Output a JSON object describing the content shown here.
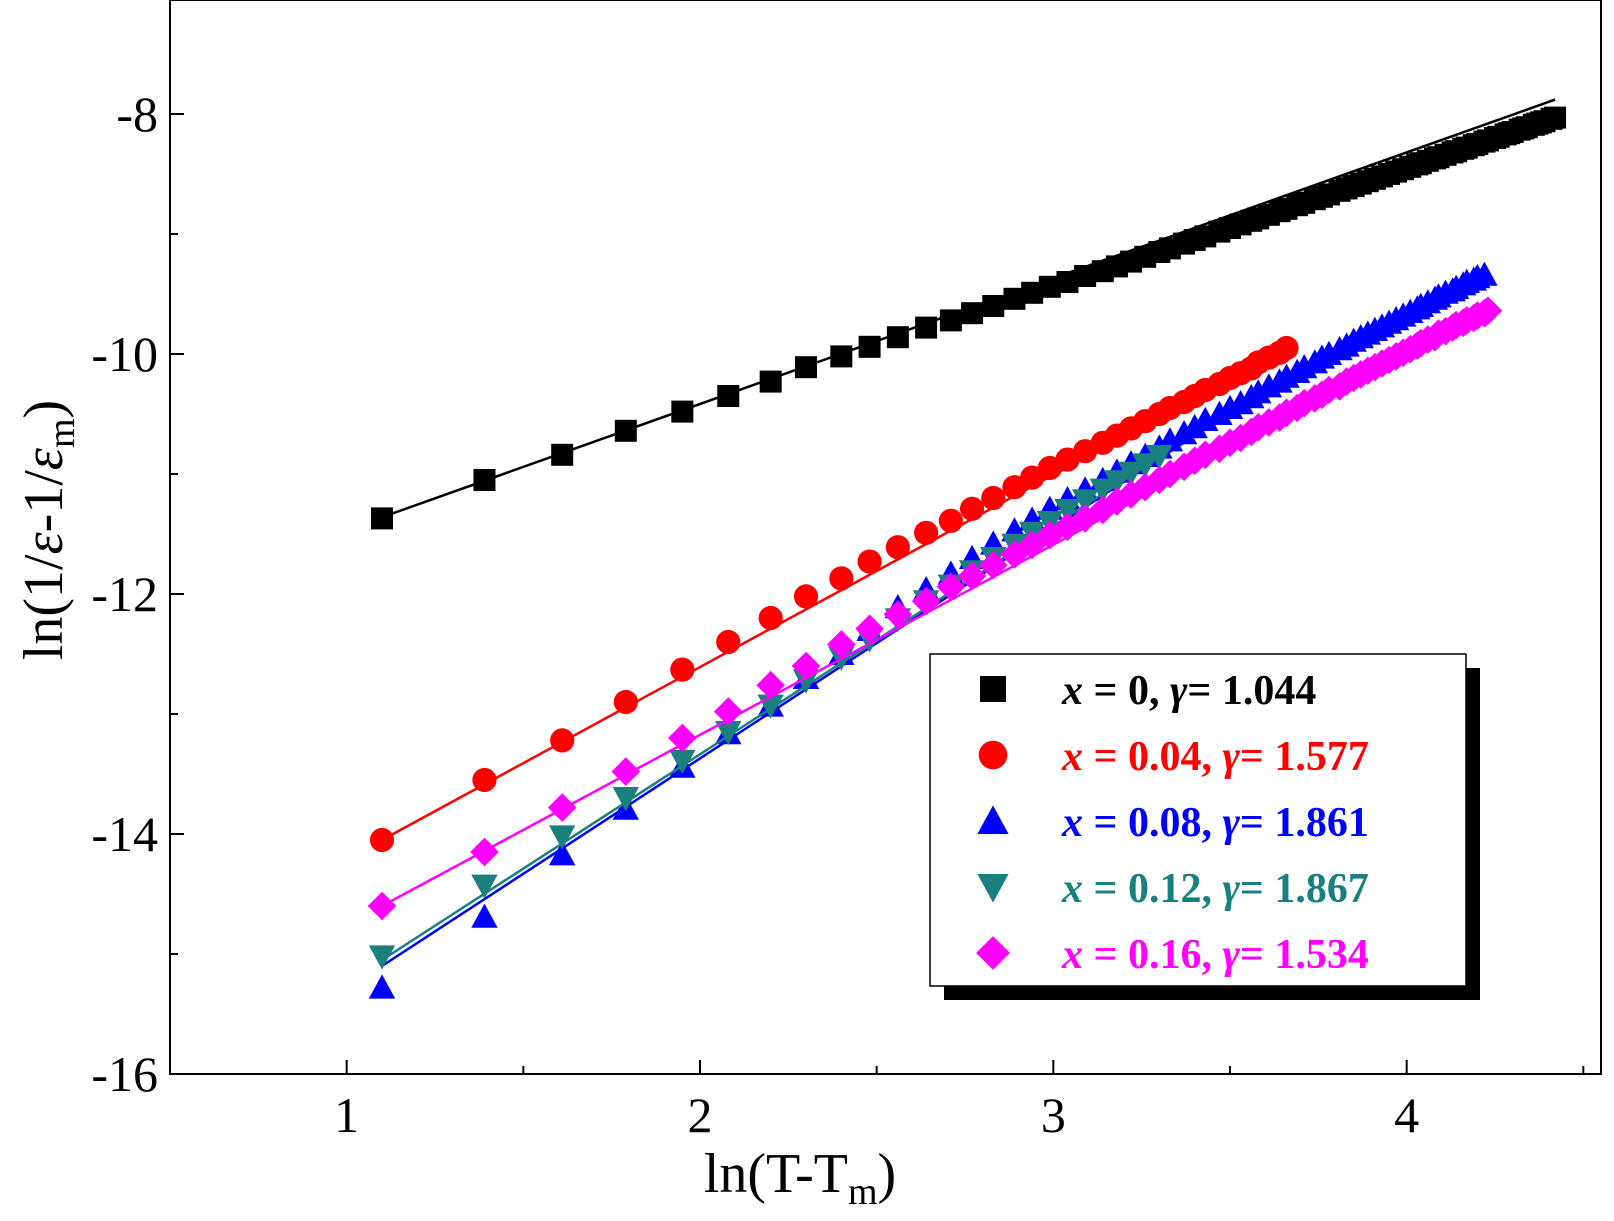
{
  "chart_data": {
    "type": "scatter",
    "xlabel": "ln(T-T",
    "xlabel_sub": "m",
    "xlabel_end": ")",
    "ylabel_parts": [
      "ln(1/",
      "ε",
      "-1/",
      "ε",
      "m",
      ")"
    ],
    "xlim": [
      0.5,
      4.55
    ],
    "ylim": [
      -16,
      -7.05
    ],
    "xticks": [
      1,
      2,
      3,
      4
    ],
    "xticklabels": [
      "1",
      "2",
      "3",
      "4"
    ],
    "yticks": [
      -16,
      -14,
      -12,
      -10,
      -8
    ],
    "yticklabels": [
      "-16",
      "-14",
      "-12",
      "-10",
      "-8"
    ],
    "grid": false,
    "legend_placement": "lower-right",
    "series": [
      {
        "name": "x = 0, γ = 1.044",
        "label": {
          "x": "x",
          "x_val": "0",
          "g": "γ",
          "g_val": "1.044"
        },
        "color": "#000000",
        "marker": "square",
        "x": [
          1.1,
          1.39,
          1.61,
          1.79,
          1.95,
          2.08,
          2.2,
          2.3,
          2.4,
          2.48,
          2.56,
          2.64,
          2.71,
          2.77,
          2.83,
          2.89,
          2.94,
          2.99,
          3.04,
          3.09,
          3.14,
          3.18,
          3.22,
          3.26,
          3.3,
          3.33,
          3.37,
          3.4,
          3.43,
          3.47,
          3.5,
          3.53,
          3.56,
          3.58,
          3.61,
          3.64,
          3.66,
          3.69,
          3.71,
          3.74,
          3.76,
          3.78,
          3.81,
          3.83,
          3.85,
          3.87,
          3.89,
          3.91,
          3.93,
          3.95,
          3.97,
          3.99,
          4.01,
          4.03,
          4.04,
          4.06,
          4.08,
          4.09,
          4.11,
          4.13,
          4.14,
          4.16,
          4.17,
          4.19,
          4.2,
          4.22,
          4.23,
          4.25,
          4.26,
          4.28,
          4.29,
          4.3,
          4.32,
          4.33,
          4.34,
          4.36,
          4.37,
          4.38,
          4.39,
          4.41,
          4.42
        ],
        "y": [
          -11.37,
          -11.05,
          -10.84,
          -10.64,
          -10.48,
          -10.35,
          -10.23,
          -10.11,
          -10.02,
          -9.94,
          -9.86,
          -9.78,
          -9.72,
          -9.66,
          -9.6,
          -9.54,
          -9.49,
          -9.44,
          -9.4,
          -9.35,
          -9.31,
          -9.27,
          -9.23,
          -9.19,
          -9.15,
          -9.12,
          -9.08,
          -9.05,
          -9.02,
          -8.98,
          -8.95,
          -8.92,
          -8.89,
          -8.87,
          -8.84,
          -8.81,
          -8.79,
          -8.76,
          -8.74,
          -8.71,
          -8.69,
          -8.67,
          -8.64,
          -8.62,
          -8.6,
          -8.58,
          -8.56,
          -8.54,
          -8.52,
          -8.5,
          -8.48,
          -8.46,
          -8.44,
          -8.42,
          -8.41,
          -8.39,
          -8.37,
          -8.36,
          -8.34,
          -8.32,
          -8.31,
          -8.29,
          -8.28,
          -8.26,
          -8.25,
          -8.23,
          -8.22,
          -8.2,
          -8.19,
          -8.17,
          -8.16,
          -8.15,
          -8.13,
          -8.12,
          -8.11,
          -8.09,
          -8.08,
          -8.07,
          -8.06,
          -8.04,
          -8.03
        ],
        "fit": [
          [
            1.1,
            -11.36
          ],
          [
            4.42,
            -7.88
          ]
        ]
      },
      {
        "name": "x = 0.04, γ = 1.577",
        "label": {
          "x": "x",
          "x_val": "0.04",
          "g": "γ",
          "g_val": "1.577"
        },
        "color": "#ff0000",
        "marker": "circle",
        "x": [
          1.1,
          1.39,
          1.61,
          1.79,
          1.95,
          2.08,
          2.2,
          2.3,
          2.4,
          2.48,
          2.56,
          2.64,
          2.71,
          2.77,
          2.83,
          2.89,
          2.94,
          2.99,
          3.04,
          3.09,
          3.14,
          3.18,
          3.22,
          3.26,
          3.3,
          3.33,
          3.37,
          3.4,
          3.43,
          3.47,
          3.5,
          3.53,
          3.56,
          3.58,
          3.61,
          3.64,
          3.66
        ],
        "y": [
          -14.05,
          -13.55,
          -13.22,
          -12.9,
          -12.63,
          -12.4,
          -12.2,
          -12.02,
          -11.87,
          -11.73,
          -11.61,
          -11.49,
          -11.39,
          -11.29,
          -11.2,
          -11.11,
          -11.03,
          -10.95,
          -10.88,
          -10.81,
          -10.74,
          -10.68,
          -10.62,
          -10.56,
          -10.5,
          -10.45,
          -10.4,
          -10.35,
          -10.3,
          -10.25,
          -10.2,
          -10.16,
          -10.12,
          -10.07,
          -10.03,
          -9.99,
          -9.95
        ],
        "fit": [
          [
            1.1,
            -14.05
          ],
          [
            3.66,
            -9.95
          ]
        ]
      },
      {
        "name": "x = 0.08, γ = 1.861",
        "label": {
          "x": "x",
          "x_val": "0.08",
          "g": "γ",
          "g_val": "1.861"
        },
        "color": "#0000ff",
        "marker": "triangle-up",
        "x": [
          1.1,
          1.39,
          1.61,
          1.79,
          1.95,
          2.08,
          2.2,
          2.3,
          2.4,
          2.48,
          2.56,
          2.64,
          2.71,
          2.77,
          2.83,
          2.89,
          2.94,
          2.99,
          3.04,
          3.09,
          3.14,
          3.18,
          3.22,
          3.26,
          3.3,
          3.33,
          3.37,
          3.4,
          3.43,
          3.47,
          3.5,
          3.53,
          3.56,
          3.58,
          3.61,
          3.64,
          3.66,
          3.69,
          3.71,
          3.74,
          3.76,
          3.78,
          3.81,
          3.83,
          3.85,
          3.87,
          3.89,
          3.91,
          3.93,
          3.95,
          3.97,
          3.99,
          4.01,
          4.03,
          4.04,
          4.06,
          4.08,
          4.09,
          4.11,
          4.13,
          4.14,
          4.16,
          4.17,
          4.19,
          4.2,
          4.22
        ],
        "y": [
          -15.28,
          -14.69,
          -14.17,
          -13.79,
          -13.44,
          -13.16,
          -12.93,
          -12.7,
          -12.5,
          -12.3,
          -12.11,
          -11.96,
          -11.83,
          -11.7,
          -11.58,
          -11.47,
          -11.38,
          -11.29,
          -11.21,
          -11.13,
          -11.05,
          -10.98,
          -10.91,
          -10.85,
          -10.78,
          -10.72,
          -10.66,
          -10.61,
          -10.55,
          -10.5,
          -10.45,
          -10.41,
          -10.36,
          -10.32,
          -10.27,
          -10.23,
          -10.19,
          -10.15,
          -10.11,
          -10.07,
          -10.03,
          -10.0,
          -9.96,
          -9.93,
          -9.89,
          -9.86,
          -9.83,
          -9.8,
          -9.77,
          -9.74,
          -9.71,
          -9.68,
          -9.65,
          -9.62,
          -9.6,
          -9.57,
          -9.54,
          -9.52,
          -9.49,
          -9.47,
          -9.45,
          -9.42,
          -9.4,
          -9.38,
          -9.36,
          -9.34
        ],
        "fit": [
          [
            1.1,
            -15.1
          ],
          [
            3.66,
            -10.18
          ]
        ]
      },
      {
        "name": "x = 0.12, γ = 1.867",
        "label": {
          "x": "x",
          "x_val": "0.12",
          "g": "γ",
          "g_val": "1.867"
        },
        "color": "#1a7f7f",
        "marker": "triangle-down",
        "x": [
          1.1,
          1.39,
          1.61,
          1.79,
          1.95,
          2.08,
          2.2,
          2.3,
          2.4,
          2.48,
          2.56,
          2.64,
          2.71,
          2.77,
          2.83,
          2.89,
          2.94,
          2.99,
          3.04,
          3.09,
          3.14,
          3.18,
          3.22,
          3.26,
          3.3
        ],
        "y": [
          -15.02,
          -14.43,
          -14.02,
          -13.7,
          -13.39,
          -13.15,
          -12.93,
          -12.72,
          -12.53,
          -12.38,
          -12.21,
          -12.06,
          -11.93,
          -11.81,
          -11.7,
          -11.59,
          -11.49,
          -11.4,
          -11.3,
          -11.22,
          -11.13,
          -11.06,
          -10.99,
          -10.92,
          -10.85
        ],
        "fit": [
          [
            1.1,
            -15.05
          ],
          [
            3.3,
            -10.86
          ]
        ]
      },
      {
        "name": "x = 0.16, γ = 1.534",
        "label": {
          "x": "x",
          "x_val": "0.16",
          "g": "γ",
          "g_val": "1.534"
        },
        "color": "#ff00ff",
        "marker": "diamond",
        "x": [
          1.1,
          1.39,
          1.61,
          1.79,
          1.95,
          2.08,
          2.2,
          2.3,
          2.4,
          2.48,
          2.56,
          2.64,
          2.71,
          2.77,
          2.83,
          2.89,
          2.94,
          2.99,
          3.04,
          3.09,
          3.14,
          3.18,
          3.22,
          3.26,
          3.3,
          3.33,
          3.37,
          3.4,
          3.43,
          3.47,
          3.5,
          3.53,
          3.56,
          3.58,
          3.61,
          3.64,
          3.66,
          3.69,
          3.71,
          3.74,
          3.76,
          3.78,
          3.81,
          3.83,
          3.85,
          3.87,
          3.89,
          3.91,
          3.93,
          3.95,
          3.97,
          3.99,
          4.01,
          4.03,
          4.04,
          4.06,
          4.08,
          4.09,
          4.11,
          4.13,
          4.14,
          4.16,
          4.17,
          4.19,
          4.2,
          4.22,
          4.23
        ],
        "y": [
          -14.6,
          -14.15,
          -13.78,
          -13.48,
          -13.2,
          -12.98,
          -12.76,
          -12.6,
          -12.42,
          -12.29,
          -12.17,
          -12.06,
          -11.94,
          -11.85,
          -11.76,
          -11.67,
          -11.59,
          -11.51,
          -11.44,
          -11.37,
          -11.3,
          -11.23,
          -11.17,
          -11.11,
          -11.05,
          -11.0,
          -10.94,
          -10.89,
          -10.84,
          -10.79,
          -10.74,
          -10.7,
          -10.65,
          -10.61,
          -10.57,
          -10.53,
          -10.49,
          -10.45,
          -10.41,
          -10.37,
          -10.34,
          -10.3,
          -10.27,
          -10.23,
          -10.2,
          -10.17,
          -10.14,
          -10.11,
          -10.08,
          -10.05,
          -10.02,
          -9.99,
          -9.96,
          -9.93,
          -9.91,
          -9.88,
          -9.86,
          -9.83,
          -9.81,
          -9.78,
          -9.76,
          -9.74,
          -9.72,
          -9.7,
          -9.68,
          -9.66,
          -9.64
        ],
        "fit": [
          [
            1.1,
            -14.6
          ],
          [
            4.23,
            -9.64
          ]
        ]
      }
    ]
  }
}
